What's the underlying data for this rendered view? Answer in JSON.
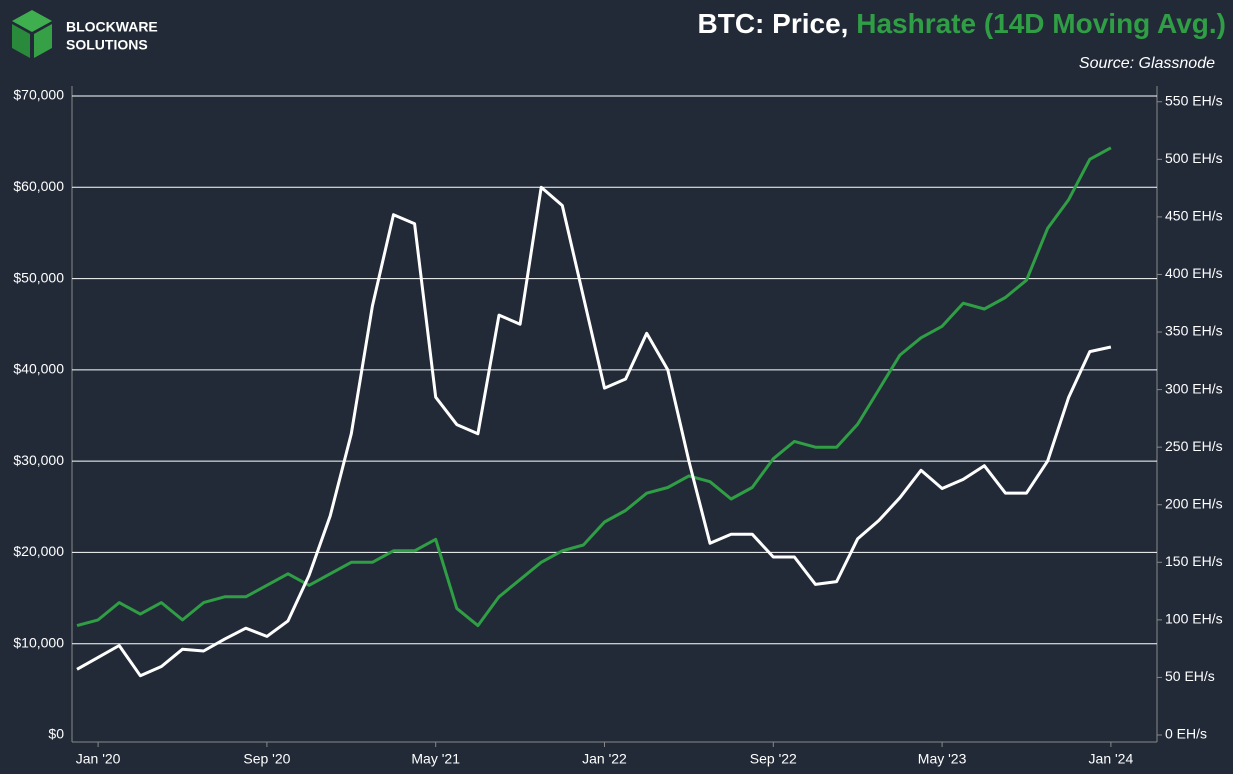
{
  "logo": [
    "BLOCKWARE",
    "SOLUTIONS"
  ],
  "chart_data": {
    "type": "line",
    "title": [
      "BTC: Price,",
      "Hashrate (14D Moving Avg.)"
    ],
    "subtitle": "Source: Glassnode",
    "categories": [
      null,
      "Jan '20",
      null,
      null,
      null,
      null,
      null,
      null,
      null,
      "Sep '20",
      null,
      null,
      null,
      null,
      null,
      null,
      null,
      "May '21",
      null,
      null,
      null,
      null,
      null,
      null,
      null,
      "Jan '22",
      null,
      null,
      null,
      null,
      null,
      null,
      null,
      "Sep '22",
      null,
      null,
      null,
      null,
      null,
      null,
      null,
      "May '23",
      null,
      null,
      null,
      null,
      null,
      null,
      null,
      "Jan '24"
    ],
    "series": [
      {
        "color": "#ffffff",
        "values": [
          7200,
          8500,
          9800,
          6500,
          7500,
          9400,
          9200,
          10500,
          11700,
          10800,
          12500,
          17500,
          24000,
          33000,
          47000,
          57000,
          56000,
          37000,
          34000,
          33000,
          46000,
          45000,
          60000,
          58000,
          48000,
          38000,
          39000,
          44000,
          40000,
          30000,
          21000,
          22000,
          22000,
          19500,
          19500,
          16500,
          16800,
          21500,
          23500,
          26000,
          29000,
          27000,
          28000,
          29500,
          26500,
          26500,
          30000,
          37000,
          42000,
          42500
        ]
      },
      {
        "color": "#2f9e44",
        "axis": "y2",
        "values": [
          95,
          100,
          115,
          105,
          115,
          100,
          115,
          120,
          120,
          130,
          140,
          130,
          140,
          150,
          150,
          160,
          160,
          170,
          110,
          95,
          120,
          135,
          150,
          160,
          165,
          185,
          195,
          210,
          215,
          225,
          220,
          205,
          215,
          240,
          255,
          250,
          250,
          270,
          300,
          330,
          345,
          355,
          375,
          370,
          380,
          395,
          440,
          465,
          500,
          510
        ]
      }
    ],
    "ylim": [
      0,
      70000
    ],
    "yticks": [
      {
        "value": 0,
        "label": "$0"
      },
      {
        "value": 10000,
        "label": "$10,000"
      },
      {
        "value": 20000,
        "label": "$20,000"
      },
      {
        "value": 30000,
        "label": "$30,000"
      },
      {
        "value": 40000,
        "label": "$40,000"
      },
      {
        "value": 50000,
        "label": "$50,000"
      },
      {
        "value": 60000,
        "label": "$60,000"
      },
      {
        "value": 70000,
        "label": "$70,000"
      }
    ],
    "y2lim": [
      0,
      555
    ],
    "y2ticks": [
      {
        "value": 0,
        "label": "0 EH/s"
      },
      {
        "value": 50,
        "label": "50 EH/s"
      },
      {
        "value": 100,
        "label": "100 EH/s"
      },
      {
        "value": 150,
        "label": "150 EH/s"
      },
      {
        "value": 200,
        "label": "200 EH/s"
      },
      {
        "value": 250,
        "label": "250 EH/s"
      },
      {
        "value": 300,
        "label": "300 EH/s"
      },
      {
        "value": 350,
        "label": "350 EH/s"
      },
      {
        "value": 400,
        "label": "400 EH/s"
      },
      {
        "value": 450,
        "label": "450 EH/s"
      },
      {
        "value": 500,
        "label": "500 EH/s"
      },
      {
        "value": 550,
        "label": "550 EH/s"
      }
    ],
    "grid": true
  }
}
